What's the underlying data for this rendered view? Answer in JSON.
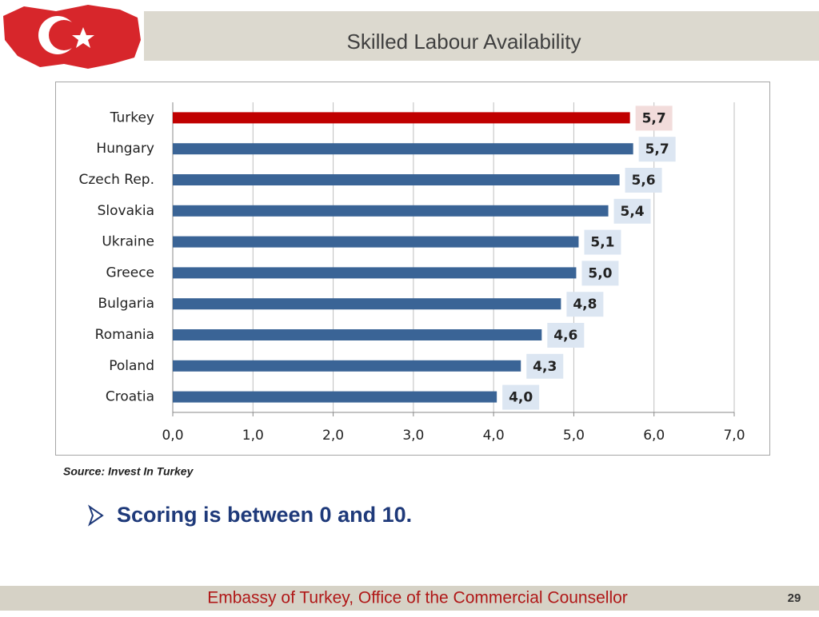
{
  "slide": {
    "title": "Skilled Labour Availability",
    "source": "Source: Invest In Turkey",
    "bullet": "Scoring is between 0 and 10.",
    "footer": "Embassy of Turkey, Office of the Commercial Counsellor",
    "page_number": "29"
  },
  "chart_data": {
    "type": "hbar",
    "categories": [
      "Turkey",
      "Hungary",
      "Czech Rep.",
      "Slovakia",
      "Ukraine",
      "Greece",
      "Bulgaria",
      "Romania",
      "Poland",
      "Croatia"
    ],
    "values": [
      5.7,
      5.74,
      5.57,
      5.43,
      5.06,
      5.03,
      4.84,
      4.6,
      4.34,
      4.04
    ],
    "value_labels": [
      "5,7",
      "5,7",
      "5,6",
      "5,4",
      "5,1",
      "5,0",
      "4,8",
      "4,6",
      "4,3",
      "4,0"
    ],
    "colors": [
      "#c00000",
      "#3a6496",
      "#3a6496",
      "#3a6496",
      "#3a6496",
      "#3a6496",
      "#3a6496",
      "#3a6496",
      "#3a6496",
      "#3a6496"
    ],
    "label_backgrounds": [
      "#f2dcdb",
      "#dce6f2",
      "#dce6f2",
      "#dce6f2",
      "#dce6f2",
      "#dce6f2",
      "#dce6f2",
      "#dce6f2",
      "#dce6f2",
      "#dce6f2"
    ],
    "xlim": [
      0,
      7
    ],
    "xticks": [
      {
        "value": 0,
        "label": "0,0"
      },
      {
        "value": 1,
        "label": "1,0"
      },
      {
        "value": 2,
        "label": "2,0"
      },
      {
        "value": 3,
        "label": "3,0"
      },
      {
        "value": 4,
        "label": "4,0"
      },
      {
        "value": 5,
        "label": "5,0"
      },
      {
        "value": 6,
        "label": "6,0"
      },
      {
        "value": 7,
        "label": "7,0"
      }
    ],
    "grid": true
  }
}
